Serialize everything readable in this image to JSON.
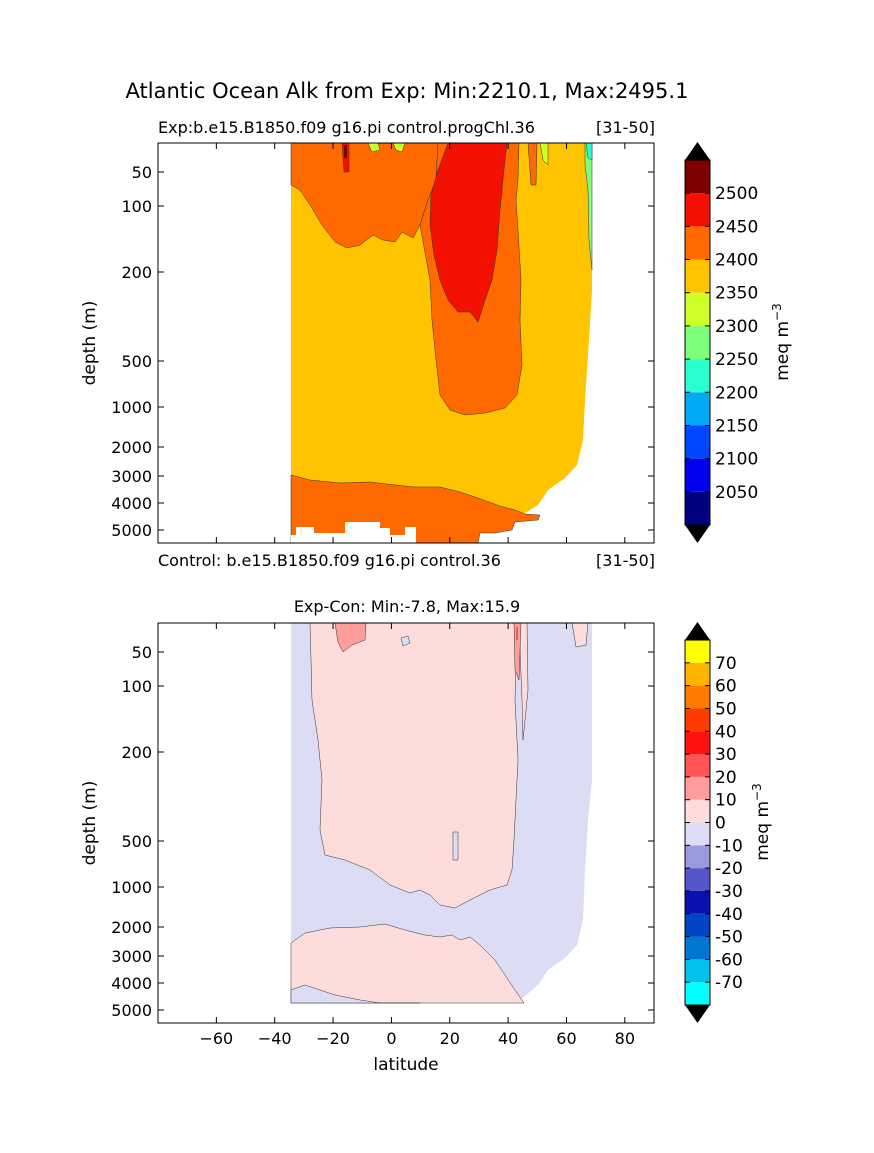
{
  "figure": {
    "suptitle": "Atlantic Ocean Alk from Exp: Min:2210.1, Max:2495.1"
  },
  "chart_data": [
    {
      "type": "heatmap",
      "panel": "top",
      "title_left": "Exp:b.e15.B1850.f09 g16.pi control.progChl.36",
      "title_right": "[31-50]",
      "bottom_left": "Control: b.e15.B1850.f09 g16.pi control.36",
      "bottom_right": "[31-50]",
      "ylabel": "depth (m)",
      "xlim": [
        -80,
        90
      ],
      "ytick_labels": [
        "50",
        "100",
        "200",
        "500",
        "1000",
        "2000",
        "3000",
        "4000",
        "5000"
      ],
      "ytick_values": [
        50,
        100,
        200,
        500,
        1000,
        2000,
        3000,
        4000,
        5000
      ],
      "colorbar": {
        "label": "meq m",
        "label_sup": "−3",
        "levels": [
          2000,
          2050,
          2100,
          2150,
          2200,
          2250,
          2300,
          2350,
          2400,
          2450,
          2500,
          2550
        ],
        "tick_labels": [
          "2050",
          "2100",
          "2150",
          "2200",
          "2250",
          "2300",
          "2350",
          "2400",
          "2450",
          "2500"
        ],
        "colors": [
          "#00007f",
          "#0000ee",
          "#0048ff",
          "#00aaf4",
          "#29ffce",
          "#7dff7a",
          "#ceff29",
          "#ffc400",
          "#ff6a00",
          "#f21100",
          "#7f0000"
        ],
        "under_color": "#000000",
        "over_color": "#000000"
      }
    },
    {
      "type": "heatmap",
      "panel": "bottom",
      "title": "Exp-Con: Min:-7.8, Max:15.9",
      "xlabel": "latitude",
      "ylabel": "depth (m)",
      "xlim": [
        -80,
        90
      ],
      "xtick_values": [
        -60,
        -40,
        -20,
        0,
        20,
        40,
        60,
        80
      ],
      "xtick_labels": [
        "−60",
        "−40",
        "−20",
        "0",
        "20",
        "40",
        "60",
        "80"
      ],
      "ytick_labels": [
        "50",
        "100",
        "200",
        "500",
        "1000",
        "2000",
        "3000",
        "4000",
        "5000"
      ],
      "ytick_values": [
        50,
        100,
        200,
        500,
        1000,
        2000,
        3000,
        4000,
        5000
      ],
      "colorbar": {
        "label": "meq m",
        "label_sup": "−3",
        "levels": [
          -80,
          -70,
          -60,
          -50,
          -40,
          -30,
          -20,
          -10,
          0,
          10,
          20,
          30,
          40,
          50,
          60,
          70,
          80
        ],
        "tick_labels": [
          "-70",
          "-60",
          "-50",
          "-40",
          "-30",
          "-20",
          "-10",
          "0",
          "10",
          "20",
          "30",
          "40",
          "50",
          "60",
          "70"
        ],
        "colors": [
          "#00ffff",
          "#00c2ec",
          "#0077d5",
          "#0044c6",
          "#0a10b0",
          "#5555cc",
          "#9999dd",
          "#dcdcf4",
          "#fddcdc",
          "#ff9c9c",
          "#ff5555",
          "#ff1111",
          "#ff3c00",
          "#ff7a00",
          "#ffb400",
          "#ffff00"
        ],
        "under_color": "#000000",
        "over_color": "#000000"
      }
    }
  ]
}
